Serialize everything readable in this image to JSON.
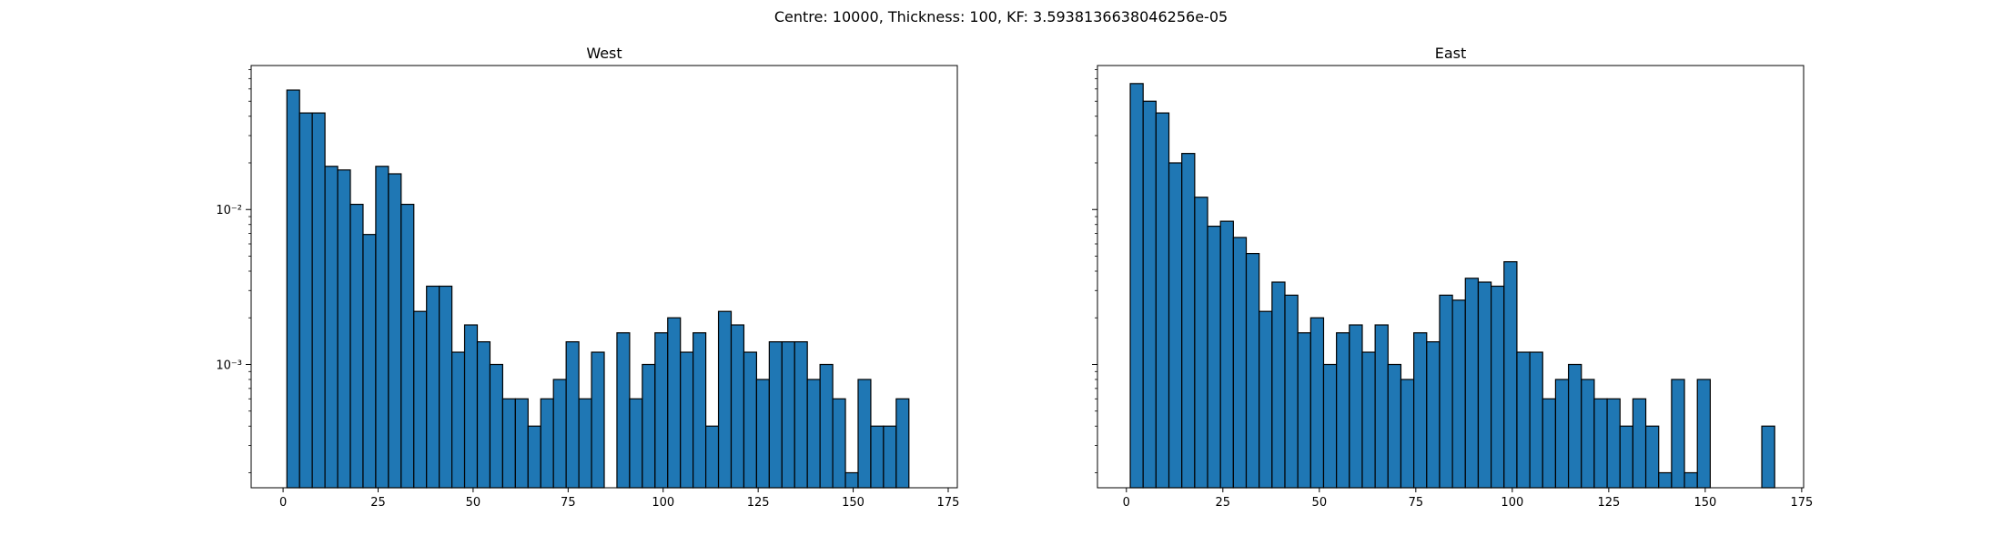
{
  "figure": {
    "suptitle": "Centre: 10000, Thickness: 100, KF: 3.5938136638046256e-05"
  },
  "chart_data": [
    {
      "type": "bar",
      "title": "West",
      "xlabel": "",
      "ylabel": "",
      "yscale": "log",
      "xlim": [
        -8.4,
        177.4
      ],
      "ylim": [
        0.00016,
        0.085
      ],
      "bin_start": 1,
      "bin_width": 3.34,
      "x_ticks": [
        0,
        25,
        50,
        75,
        100,
        125,
        150,
        175
      ],
      "x_tick_labels": [
        "0",
        "25",
        "50",
        "75",
        "100",
        "125",
        "150",
        "175"
      ],
      "y_ticks": [
        0.01,
        0.001
      ],
      "y_tick_labels": [
        "10⁻²",
        "10⁻³"
      ],
      "bar_color": "#1f77b4",
      "edge_color": "#000000",
      "values": [
        0.059,
        0.042,
        0.042,
        0.019,
        0.018,
        0.0108,
        0.0069,
        0.019,
        0.017,
        0.0108,
        0.0022,
        0.0032,
        0.0032,
        0.0012,
        0.0018,
        0.0014,
        0.001,
        0.0006,
        0.0006,
        0.0004,
        0.0006,
        0.0008,
        0.0014,
        0.0006,
        0.0012,
        0,
        0.0016,
        0.0006,
        0.001,
        0.0016,
        0.002,
        0.0012,
        0.0016,
        0.0004,
        0.0022,
        0.0018,
        0.0012,
        0.0008,
        0.0014,
        0.0014,
        0.0014,
        0.0008,
        0.001,
        0.0006,
        0.0002,
        0.0008,
        0.0004,
        0.0004,
        0.0006
      ]
    },
    {
      "type": "bar",
      "title": "East",
      "xlabel": "",
      "ylabel": "",
      "yscale": "log",
      "xlim": [
        -7.5,
        175.5
      ],
      "ylim": [
        0.00016,
        0.085
      ],
      "bin_start": 1,
      "bin_width": 3.34,
      "x_ticks": [
        0,
        25,
        50,
        75,
        100,
        125,
        150,
        175
      ],
      "x_tick_labels": [
        "0",
        "25",
        "50",
        "75",
        "100",
        "125",
        "150",
        "175"
      ],
      "y_ticks": [
        0.01,
        0.001
      ],
      "y_tick_labels": [
        "",
        ""
      ],
      "bar_color": "#1f77b4",
      "edge_color": "#000000",
      "values": [
        0.065,
        0.05,
        0.042,
        0.02,
        0.023,
        0.012,
        0.0078,
        0.0084,
        0.0066,
        0.0052,
        0.0022,
        0.0034,
        0.0028,
        0.0016,
        0.002,
        0.001,
        0.0016,
        0.0018,
        0.0012,
        0.0018,
        0.001,
        0.0008,
        0.0016,
        0.0014,
        0.0028,
        0.0026,
        0.0036,
        0.0034,
        0.0032,
        0.0046,
        0.0012,
        0.0012,
        0.0006,
        0.0008,
        0.001,
        0.0008,
        0.0006,
        0.0006,
        0.0004,
        0.0006,
        0.0004,
        0.0002,
        0.0008,
        0.0002,
        0.0008,
        0,
        0,
        0,
        0,
        0.0004
      ]
    }
  ]
}
